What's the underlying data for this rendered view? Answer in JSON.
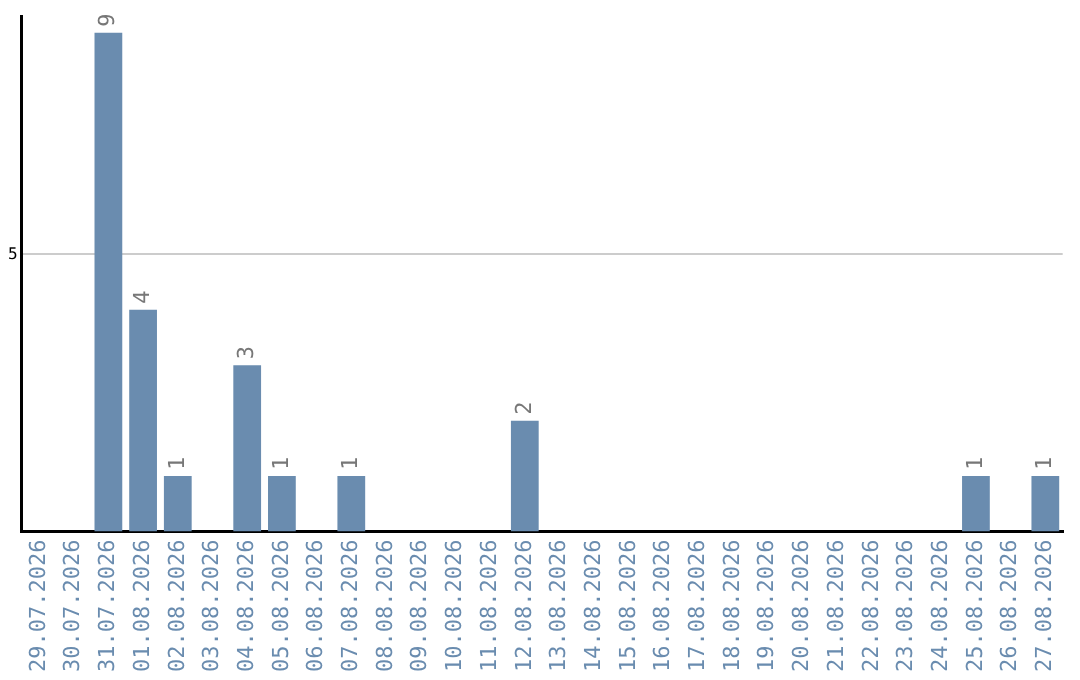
{
  "chart_data": {
    "type": "bar",
    "categories": [
      "29.07.2026",
      "30.07.2026",
      "31.07.2026",
      "01.08.2026",
      "02.08.2026",
      "03.08.2026",
      "04.08.2026",
      "05.08.2026",
      "06.08.2026",
      "07.08.2026",
      "08.08.2026",
      "09.08.2026",
      "10.08.2026",
      "11.08.2026",
      "12.08.2026",
      "13.08.2026",
      "14.08.2026",
      "15.08.2026",
      "16.08.2026",
      "17.08.2026",
      "18.08.2026",
      "19.08.2026",
      "20.08.2026",
      "21.08.2026",
      "22.08.2026",
      "23.08.2026",
      "24.08.2026",
      "25.08.2026",
      "26.08.2026",
      "27.08.2026"
    ],
    "values": [
      null,
      null,
      9,
      4,
      1,
      null,
      3,
      1,
      null,
      1,
      null,
      null,
      null,
      null,
      2,
      null,
      null,
      null,
      null,
      null,
      null,
      null,
      null,
      null,
      null,
      null,
      null,
      1,
      null,
      1
    ],
    "color": "#6a8caf",
    "ylim": [
      0,
      9.3
    ],
    "yticks": [
      5
    ],
    "grid": "y",
    "data_labels": true,
    "legend": false
  }
}
